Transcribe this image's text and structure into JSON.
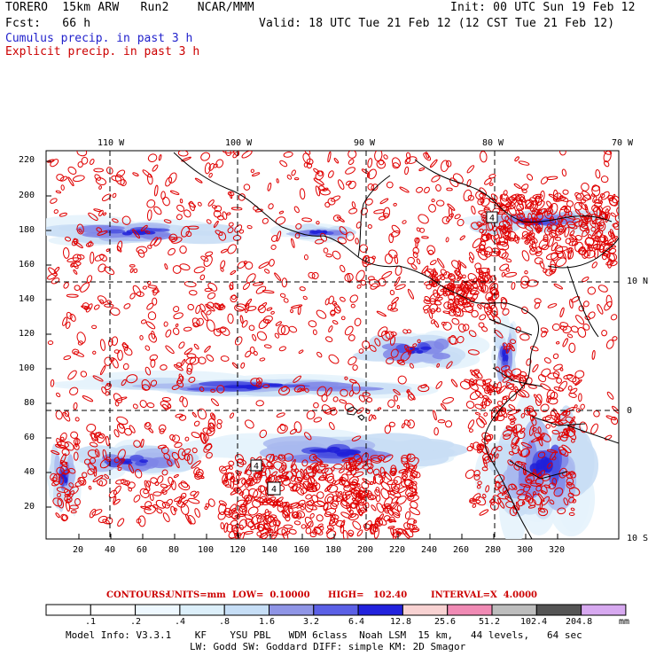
{
  "header": {
    "model": "TORERO  15km ARW   Run2    NCAR/MMM",
    "init": "Init: 00 UTC Sun 19 Feb 12",
    "fcst": "Fcst:   66 h",
    "valid": "Valid: 18 UTC Tue 21 Feb 12 (12 CST Tue 21 Feb 12)",
    "legend_blue": "Cumulus precip. in past 3 h",
    "legend_red": "Explicit precip. in past 3 h"
  },
  "colors": {
    "cumulus": "#2222cc",
    "explicit": "#cc0000",
    "contour": "#e00000",
    "coast": "#000000",
    "grid": "#000000"
  },
  "map": {
    "lon_labels": [
      "110 W",
      "100 W",
      "90 W",
      "80 W",
      "70 W"
    ],
    "lat_labels": [
      "10 N",
      "0",
      "10 S"
    ],
    "x_ticks": [
      "20",
      "40",
      "60",
      "80",
      "100",
      "120",
      "140",
      "160",
      "180",
      "200",
      "220",
      "240",
      "260",
      "280",
      "300",
      "320"
    ],
    "y_ticks": [
      "20",
      "40",
      "60",
      "80",
      "100",
      "120",
      "140",
      "160",
      "180",
      "200",
      "220"
    ],
    "box_labels": [
      "4",
      "4",
      "4"
    ]
  },
  "contour_line": {
    "contours_label": "CONTOURS:",
    "units": "UNITS=mm",
    "low": "LOW=  0.10000",
    "high": "HIGH=   102.40",
    "interval": "INTERVAL=X  4.0000"
  },
  "colorbar": {
    "labels": [
      ".1",
      ".2",
      ".4",
      ".8",
      "1.6",
      "3.2",
      "6.4",
      "12.8",
      "25.6",
      "51.2",
      "102.4",
      "204.8"
    ],
    "unit": "mm",
    "colors": [
      "#ffffff",
      "#ffffff",
      "#eef8ff",
      "#dceffa",
      "#c6def6",
      "#8f95e6",
      "#5b60e6",
      "#2222dd",
      "#f8d2d2",
      "#f08ab4",
      "#bdbdbd",
      "#555555",
      "#d7a9f0"
    ]
  },
  "info": {
    "line1": "Model Info: V3.3.1    KF    YSU PBL   WDM 6class  Noah LSM  15 km,   44 levels,   64 sec",
    "line2": "LW: Godd SW: Goddard DIFF: simple KM: 2D Smagor"
  }
}
